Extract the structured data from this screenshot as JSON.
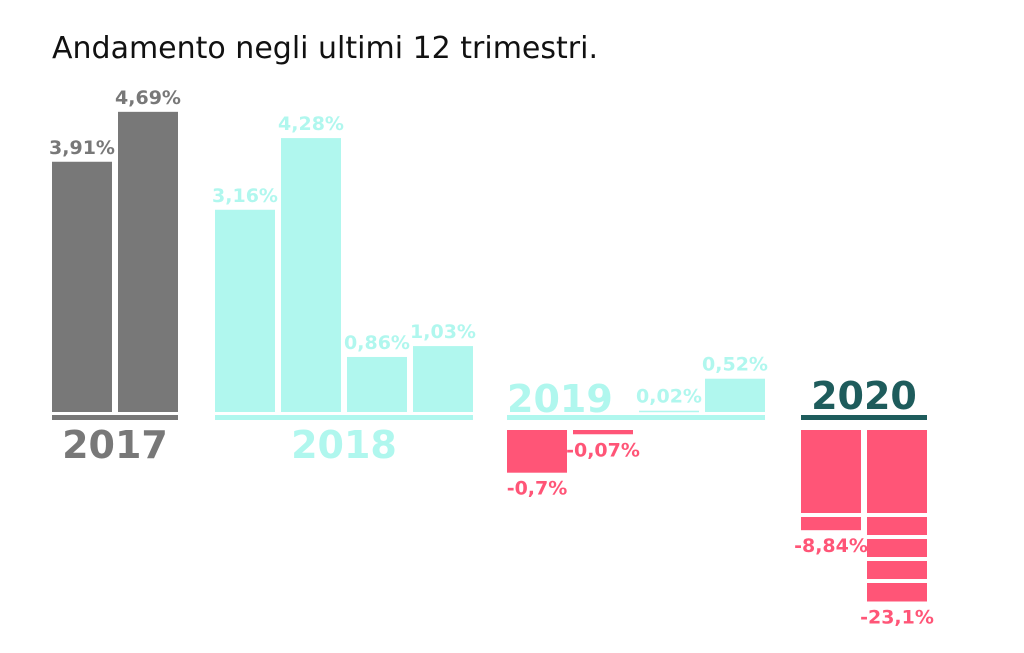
{
  "chart_data": {
    "type": "bar",
    "title": "Andamento negli ultimi 12 trimestri.",
    "positive_color": "#b0f7ee",
    "negative_color": "#ff5577",
    "groups": [
      {
        "label": "2017",
        "color": "#787878",
        "values": [
          3.91,
          4.69
        ],
        "value_labels": [
          "3,91%",
          "4,69%"
        ]
      },
      {
        "label": "2018",
        "color": "#b0f7ee",
        "values": [
          3.16,
          4.28,
          0.86,
          1.03
        ],
        "value_labels": [
          "3,16%",
          "4,28%",
          "0,86%",
          "1,03%"
        ]
      },
      {
        "label": "2019",
        "color": "#b0f7ee",
        "values": [
          -0.7,
          -0.07,
          0.02,
          0.52
        ],
        "value_labels": [
          "-0,7%",
          "-0,07%",
          "0,02%",
          "0,52%"
        ]
      },
      {
        "label": "2020",
        "color": "#1e5c5c",
        "values": [
          -8.84,
          -23.1
        ],
        "value_labels": [
          "-8,84%",
          "-23,1%"
        ]
      }
    ]
  }
}
